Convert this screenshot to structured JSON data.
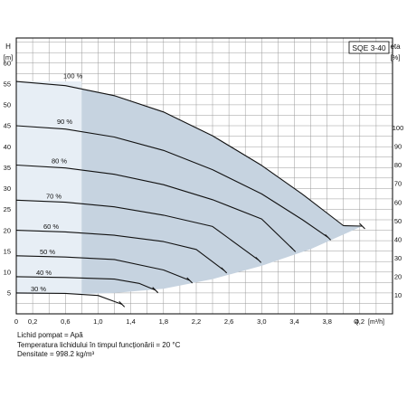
{
  "chart_data": {
    "type": "line",
    "title": "SQE 3-40",
    "ylabel": "H",
    "ylabel_unit": "[m]",
    "y2label": "eta",
    "y2label_unit": "[%]",
    "xlabel": "Q",
    "xlabel_unit": "[m³/h]",
    "xlim": [
      0,
      4.6
    ],
    "ylim": [
      0,
      66
    ],
    "x_ticks": [
      "0",
      "0,2",
      "0,6",
      "1,0",
      "1,4",
      "1,8",
      "2,2",
      "2,6",
      "3,0",
      "3,4",
      "3,8",
      "4,2"
    ],
    "y_ticks": [
      "5",
      "10",
      "15",
      "20",
      "25",
      "30",
      "35",
      "40",
      "45",
      "50",
      "55",
      "60"
    ],
    "y2_ticks": [
      "10",
      "20",
      "30",
      "40",
      "50",
      "60",
      "70",
      "80",
      "90",
      "100"
    ],
    "grid": true,
    "region": {
      "upper_x": [
        0,
        0.6,
        1.2,
        1.8,
        2.4,
        3.0,
        3.5,
        4.0,
        4.23
      ],
      "upper_y": [
        55.6,
        54.6,
        52.2,
        48.3,
        42.6,
        35.5,
        28.6,
        21.1,
        21.0
      ],
      "lower_x": [
        4.23,
        3.6,
        3.0,
        2.4,
        1.8,
        1.2,
        0.9
      ],
      "lower_y": [
        21.0,
        15.5,
        11.5,
        8.3,
        6.0,
        5.0,
        4.8
      ]
    },
    "series": [
      {
        "name": "100 %",
        "x": [
          0,
          0.6,
          1.2,
          1.8,
          2.4,
          3.0,
          3.5,
          4.0,
          4.23
        ],
        "y": [
          55.6,
          54.6,
          52.2,
          48.3,
          42.6,
          35.5,
          28.6,
          21.1,
          21.0
        ]
      },
      {
        "name": "90 %",
        "x": [
          0,
          0.6,
          1.2,
          1.8,
          2.4,
          3.0,
          3.5,
          3.81
        ],
        "y": [
          45.0,
          44.2,
          42.3,
          39.1,
          34.5,
          28.7,
          22.5,
          18.3
        ]
      },
      {
        "name": "80 %",
        "x": [
          0,
          0.6,
          1.2,
          1.8,
          2.4,
          3.0,
          3.38
        ],
        "y": [
          35.6,
          34.9,
          33.4,
          30.9,
          27.3,
          22.7,
          15.5
        ]
      },
      {
        "name": "70 %",
        "x": [
          0,
          0.6,
          1.2,
          1.8,
          2.4,
          2.96
        ],
        "y": [
          27.2,
          26.7,
          25.6,
          23.6,
          20.9,
          12.9
        ]
      },
      {
        "name": "60 %",
        "x": [
          0,
          0.6,
          1.2,
          1.8,
          2.2,
          2.54
        ],
        "y": [
          20.0,
          19.6,
          18.8,
          17.3,
          15.4,
          10.4
        ]
      },
      {
        "name": "50 %",
        "x": [
          0,
          0.6,
          1.2,
          1.8,
          2.12
        ],
        "y": [
          13.9,
          13.6,
          13.0,
          10.5,
          8.0
        ]
      },
      {
        "name": "40 %",
        "x": [
          0,
          0.6,
          1.2,
          1.5,
          1.7
        ],
        "y": [
          8.9,
          8.7,
          8.3,
          7.3,
          5.7
        ]
      },
      {
        "name": "30 %",
        "x": [
          0,
          0.6,
          1.0,
          1.29
        ],
        "y": [
          5.0,
          4.9,
          4.4,
          2.3
        ]
      }
    ]
  },
  "notes": {
    "liquid": "Lichid pompat = Apă",
    "temperature": "Temperatura lichidului în timpul funcționării = 20 °C",
    "density": "Densitate = 998.2 kg/m³"
  }
}
